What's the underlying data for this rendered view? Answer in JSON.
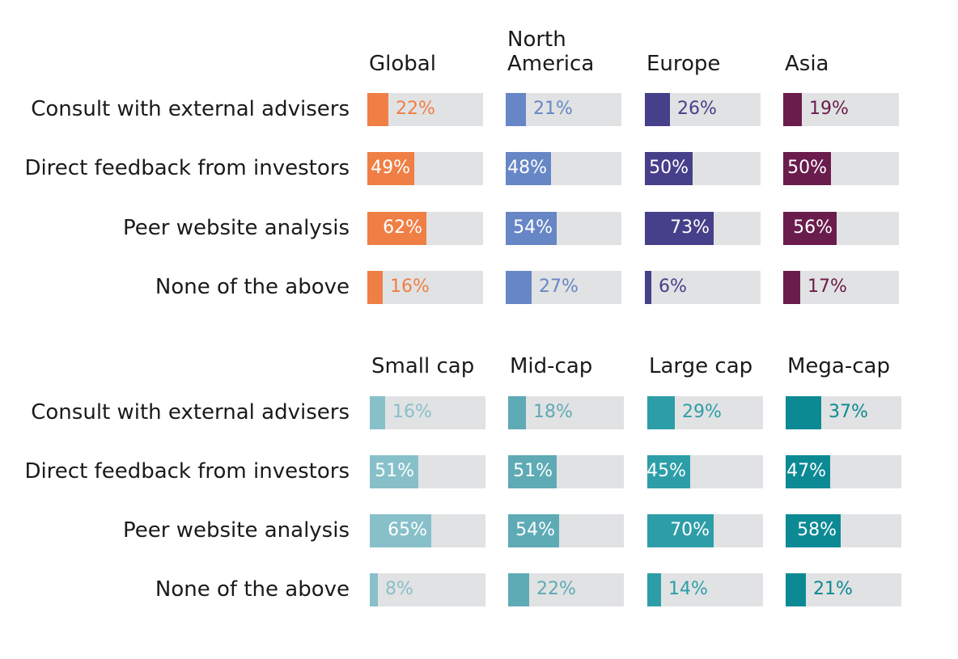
{
  "chart_data": [
    {
      "type": "bar",
      "orientation": "horizontal",
      "categories": [
        "Consult with external advisers",
        "Direct feedback from investors",
        "Peer website analysis",
        "None of the above"
      ],
      "xlim": [
        0,
        100
      ],
      "unit": "%",
      "series": [
        {
          "name": "Global",
          "values": [
            22,
            49,
            62,
            16
          ],
          "color": "#ef7f45",
          "labels": [
            "22%",
            "49%",
            "62%",
            "16%"
          ]
        },
        {
          "name": "North\nAmerica",
          "values": [
            21,
            48,
            54,
            27
          ],
          "color": "#6786c6",
          "labels": [
            "21%",
            "48%",
            "54%",
            "27%"
          ]
        },
        {
          "name": "Europe",
          "values": [
            26,
            50,
            73,
            6
          ],
          "color": "#463f8a",
          "labels": [
            "26%",
            "50%",
            "73%",
            "6%"
          ]
        },
        {
          "name": "Asia",
          "values": [
            19,
            50,
            56,
            17
          ],
          "color": "#6a1c4c",
          "labels": [
            "19%",
            "50%",
            "56%",
            "17%"
          ]
        }
      ]
    },
    {
      "type": "bar",
      "orientation": "horizontal",
      "categories": [
        "Consult with external advisers",
        "Direct feedback from investors",
        "Peer website analysis",
        "None of the above"
      ],
      "xlim": [
        0,
        100
      ],
      "unit": "%",
      "series": [
        {
          "name": "Small cap",
          "values": [
            16,
            51,
            65,
            8
          ],
          "color": "#88c0c9",
          "labels": [
            "16%",
            "51%",
            "65%",
            "8%"
          ]
        },
        {
          "name": "Mid-cap",
          "values": [
            18,
            51,
            54,
            22
          ],
          "color": "#5eaab5",
          "labels": [
            "18%",
            "51%",
            "54%",
            "22%"
          ]
        },
        {
          "name": "Large cap",
          "values": [
            29,
            45,
            70,
            14
          ],
          "color": "#2d9ea8",
          "labels": [
            "29%",
            "45%",
            "70%",
            "14%"
          ]
        },
        {
          "name": "Mega-cap",
          "values": [
            37,
            47,
            58,
            21
          ],
          "color": "#0c8a94",
          "labels": [
            "37%",
            "47%",
            "58%",
            "21%"
          ]
        }
      ]
    }
  ]
}
